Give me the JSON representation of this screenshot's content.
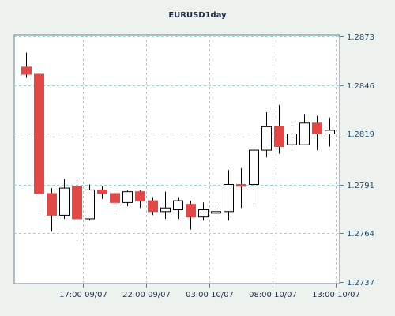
{
  "chart_data": {
    "type": "candlestick",
    "title": "EURUSD1day",
    "colors": {
      "background": "#edf2ee",
      "plot": "#ffffff",
      "grid": "#9fd4d4",
      "axis": "#6a7d8e",
      "up_body": "#ffffff",
      "down_body": "#e34848",
      "candle_outline": "#000000"
    },
    "ylim": [
      1.2737,
      1.2873
    ],
    "y_ticks": [
      "1.2737",
      "1.2764",
      "1.2791",
      "1.2819",
      "1.2846",
      "1.2873"
    ],
    "x_ticks": [
      {
        "label": "17:00 09/07",
        "index": 4.5
      },
      {
        "label": "22:00 09/07",
        "index": 9.5
      },
      {
        "label": "03:00 10/07",
        "index": 14.5
      },
      {
        "label": "08:00 10/07",
        "index": 19.5
      },
      {
        "label": "13:00 10/07",
        "index": 24.5
      }
    ],
    "candles": [
      {
        "open": 1.2856,
        "high": 1.2864,
        "low": 1.285,
        "close": 1.2852
      },
      {
        "open": 1.2852,
        "high": 1.2854,
        "low": 1.2776,
        "close": 1.2786
      },
      {
        "open": 1.2786,
        "high": 1.2789,
        "low": 1.2765,
        "close": 1.2774
      },
      {
        "open": 1.2774,
        "high": 1.2794,
        "low": 1.2772,
        "close": 1.2789
      },
      {
        "open": 1.279,
        "high": 1.2792,
        "low": 1.276,
        "close": 1.2772
      },
      {
        "open": 1.2772,
        "high": 1.2791,
        "low": 1.2771,
        "close": 1.2788
      },
      {
        "open": 1.2788,
        "high": 1.279,
        "low": 1.2783,
        "close": 1.2786
      },
      {
        "open": 1.2786,
        "high": 1.2788,
        "low": 1.2776,
        "close": 1.2781
      },
      {
        "open": 1.2781,
        "high": 1.2788,
        "low": 1.2779,
        "close": 1.2787
      },
      {
        "open": 1.2787,
        "high": 1.2788,
        "low": 1.2778,
        "close": 1.2782
      },
      {
        "open": 1.2782,
        "high": 1.2784,
        "low": 1.2774,
        "close": 1.2776
      },
      {
        "open": 1.2776,
        "high": 1.2787,
        "low": 1.2772,
        "close": 1.2778
      },
      {
        "open": 1.2777,
        "high": 1.2784,
        "low": 1.2772,
        "close": 1.2782
      },
      {
        "open": 1.278,
        "high": 1.2782,
        "low": 1.2766,
        "close": 1.2773
      },
      {
        "open": 1.2773,
        "high": 1.2781,
        "low": 1.2771,
        "close": 1.2777
      },
      {
        "open": 1.2776,
        "high": 1.2779,
        "low": 1.2773,
        "close": 1.2776
      },
      {
        "open": 1.2776,
        "high": 1.2799,
        "low": 1.2771,
        "close": 1.2791
      },
      {
        "open": 1.2791,
        "high": 1.28,
        "low": 1.2778,
        "close": 1.279
      },
      {
        "open": 1.2791,
        "high": 1.2809,
        "low": 1.278,
        "close": 1.281
      },
      {
        "open": 1.281,
        "high": 1.2831,
        "low": 1.2806,
        "close": 1.2823
      },
      {
        "open": 1.2823,
        "high": 1.2835,
        "low": 1.2808,
        "close": 1.2812
      },
      {
        "open": 1.2813,
        "high": 1.2824,
        "low": 1.2811,
        "close": 1.2819
      },
      {
        "open": 1.2813,
        "high": 1.283,
        "low": 1.2813,
        "close": 1.2825
      },
      {
        "open": 1.2825,
        "high": 1.2829,
        "low": 1.281,
        "close": 1.2819
      },
      {
        "open": 1.2819,
        "high": 1.2828,
        "low": 1.2812,
        "close": 1.2821
      }
    ]
  }
}
